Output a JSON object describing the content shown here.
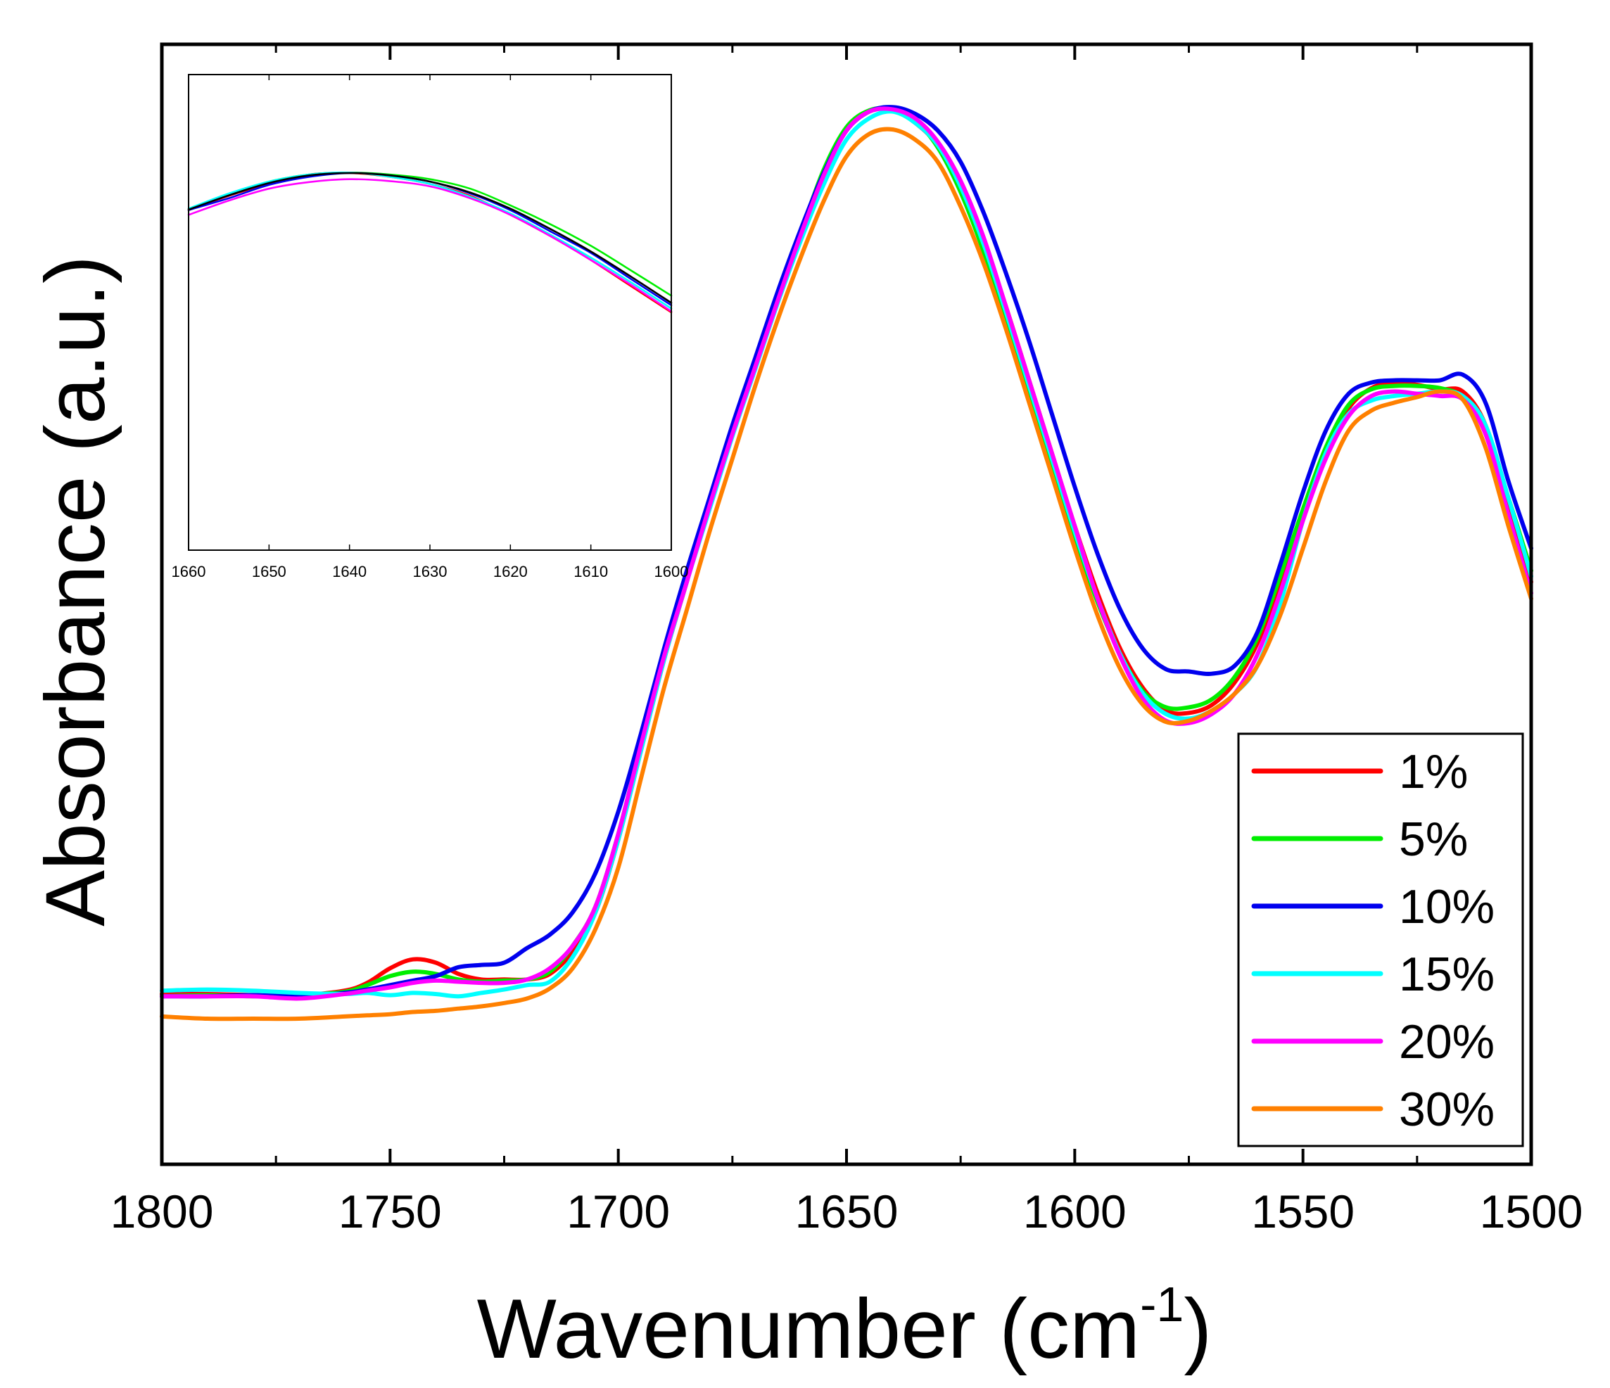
{
  "chart_data": [
    {
      "id": "main",
      "type": "line",
      "title": "",
      "xlabel": "Wavenumber (cm",
      "xlabel_superscript": "-1",
      "xlabel_suffix": ")",
      "ylabel": "Absorbance (a.u.)",
      "xlim": [
        1800,
        1500
      ],
      "ylim": [
        0,
        100
      ],
      "x_ticks": [
        1800,
        1750,
        1700,
        1650,
        1600,
        1550,
        1500
      ],
      "x_tick_labels": [
        "1800",
        "1750",
        "1700",
        "1650",
        "1600",
        "1550",
        "1500"
      ],
      "y_ticks_visible": false,
      "grid": false,
      "legend_position": "bottom-right",
      "series": [
        {
          "name": "1%",
          "color": "#ff0000",
          "x": [
            1800,
            1790,
            1780,
            1770,
            1760,
            1755,
            1750,
            1745,
            1740,
            1735,
            1730,
            1725,
            1720,
            1715,
            1710,
            1705,
            1700,
            1695,
            1690,
            1685,
            1680,
            1675,
            1670,
            1665,
            1660,
            1655,
            1650,
            1645,
            1640,
            1635,
            1630,
            1625,
            1620,
            1615,
            1610,
            1605,
            1600,
            1595,
            1590,
            1585,
            1580,
            1575,
            1570,
            1565,
            1560,
            1555,
            1550,
            1545,
            1540,
            1535,
            1530,
            1525,
            1520,
            1515,
            1510,
            1505,
            1500
          ],
          "y": [
            15.2,
            15.2,
            15.1,
            15.1,
            15.5,
            16.2,
            17.5,
            18.3,
            18.0,
            17.0,
            16.5,
            16.5,
            16.5,
            17.0,
            19.0,
            22.5,
            29.0,
            37.0,
            45.0,
            52.0,
            59.0,
            65.5,
            71.5,
            77.5,
            83.0,
            88.5,
            92.5,
            94.0,
            94.2,
            93.0,
            91.0,
            87.5,
            82.5,
            76.5,
            70.0,
            63.5,
            57.0,
            51.0,
            46.0,
            42.5,
            40.5,
            40.3,
            41.0,
            43.0,
            46.5,
            52.0,
            58.0,
            63.5,
            67.5,
            69.3,
            69.8,
            69.6,
            69.2,
            69.0,
            66.0,
            59.0,
            52.0
          ]
        },
        {
          "name": "5%",
          "color": "#00ee00",
          "x": [
            1800,
            1790,
            1780,
            1770,
            1760,
            1755,
            1750,
            1745,
            1740,
            1735,
            1730,
            1725,
            1720,
            1715,
            1710,
            1705,
            1700,
            1695,
            1690,
            1685,
            1680,
            1675,
            1670,
            1665,
            1660,
            1655,
            1650,
            1645,
            1640,
            1635,
            1630,
            1625,
            1620,
            1615,
            1610,
            1605,
            1600,
            1595,
            1590,
            1585,
            1580,
            1575,
            1570,
            1565,
            1560,
            1555,
            1550,
            1545,
            1540,
            1535,
            1530,
            1525,
            1520,
            1515,
            1510,
            1505,
            1500
          ],
          "y": [
            15.0,
            15.1,
            15.0,
            15.1,
            15.4,
            16.0,
            16.8,
            17.2,
            17.0,
            16.5,
            16.3,
            16.4,
            16.5,
            17.2,
            19.5,
            23.0,
            29.5,
            37.5,
            45.5,
            52.5,
            59.0,
            65.5,
            71.5,
            77.5,
            83.2,
            88.8,
            92.6,
            94.1,
            94.2,
            93.2,
            90.8,
            86.8,
            81.5,
            75.2,
            68.8,
            62.5,
            56.0,
            50.2,
            45.5,
            42.2,
            40.8,
            40.8,
            41.5,
            43.5,
            47.0,
            52.5,
            58.5,
            64.0,
            67.8,
            69.2,
            69.5,
            69.5,
            69.3,
            68.5,
            65.5,
            59.5,
            53.0
          ]
        },
        {
          "name": "10%",
          "color": "#0000ee",
          "x": [
            1800,
            1790,
            1780,
            1770,
            1760,
            1755,
            1750,
            1745,
            1740,
            1735,
            1730,
            1725,
            1720,
            1715,
            1710,
            1705,
            1700,
            1695,
            1690,
            1685,
            1680,
            1675,
            1670,
            1665,
            1660,
            1655,
            1650,
            1645,
            1640,
            1635,
            1630,
            1625,
            1620,
            1615,
            1610,
            1605,
            1600,
            1595,
            1590,
            1585,
            1580,
            1575,
            1570,
            1565,
            1560,
            1555,
            1550,
            1545,
            1540,
            1535,
            1530,
            1525,
            1520,
            1515,
            1510,
            1505,
            1500
          ],
          "y": [
            15.0,
            15.0,
            15.1,
            15.0,
            15.3,
            15.6,
            16.0,
            16.4,
            16.8,
            17.6,
            17.8,
            18.0,
            19.3,
            20.5,
            22.5,
            26.0,
            31.5,
            38.5,
            46.0,
            53.0,
            59.5,
            66.0,
            72.0,
            78.0,
            83.5,
            88.5,
            92.3,
            94.0,
            94.4,
            93.8,
            92.3,
            89.5,
            85.0,
            79.5,
            73.5,
            67.0,
            60.5,
            54.5,
            49.5,
            46.0,
            44.2,
            44.0,
            43.8,
            44.5,
            47.5,
            53.5,
            60.0,
            65.5,
            68.8,
            69.8,
            70.0,
            70.0,
            70.0,
            70.5,
            68.0,
            61.0,
            55.0
          ]
        },
        {
          "name": "15%",
          "color": "#00ffff",
          "x": [
            1800,
            1790,
            1780,
            1770,
            1760,
            1755,
            1750,
            1745,
            1740,
            1735,
            1730,
            1725,
            1720,
            1715,
            1710,
            1705,
            1700,
            1695,
            1690,
            1685,
            1680,
            1675,
            1670,
            1665,
            1660,
            1655,
            1650,
            1645,
            1640,
            1635,
            1630,
            1625,
            1620,
            1615,
            1610,
            1605,
            1600,
            1595,
            1590,
            1585,
            1580,
            1575,
            1570,
            1565,
            1560,
            1555,
            1550,
            1545,
            1540,
            1535,
            1530,
            1525,
            1520,
            1515,
            1510,
            1505,
            1500
          ],
          "y": [
            15.5,
            15.6,
            15.5,
            15.3,
            15.2,
            15.3,
            15.1,
            15.3,
            15.2,
            15.0,
            15.3,
            15.6,
            16.0,
            16.3,
            18.5,
            22.5,
            29.0,
            37.0,
            45.0,
            52.0,
            58.5,
            65.0,
            71.0,
            77.0,
            82.5,
            87.5,
            91.5,
            93.4,
            94.0,
            93.0,
            91.0,
            87.3,
            82.2,
            76.0,
            69.5,
            63.0,
            56.5,
            50.5,
            45.5,
            42.0,
            40.2,
            39.8,
            40.5,
            42.0,
            44.5,
            50.0,
            57.5,
            63.5,
            67.0,
            68.2,
            68.6,
            68.8,
            69.0,
            68.6,
            66.0,
            59.5,
            52.5
          ]
        },
        {
          "name": "20%",
          "color": "#ff00ff",
          "x": [
            1800,
            1790,
            1780,
            1770,
            1760,
            1755,
            1750,
            1745,
            1740,
            1735,
            1730,
            1725,
            1720,
            1715,
            1710,
            1705,
            1700,
            1695,
            1690,
            1685,
            1680,
            1675,
            1670,
            1665,
            1660,
            1655,
            1650,
            1645,
            1640,
            1635,
            1630,
            1625,
            1620,
            1615,
            1610,
            1605,
            1600,
            1595,
            1590,
            1585,
            1580,
            1575,
            1570,
            1565,
            1560,
            1555,
            1550,
            1545,
            1540,
            1535,
            1530,
            1525,
            1520,
            1515,
            1510,
            1505,
            1500
          ],
          "y": [
            15.0,
            15.0,
            15.0,
            14.8,
            15.2,
            15.5,
            15.8,
            16.2,
            16.4,
            16.3,
            16.2,
            16.2,
            16.5,
            17.5,
            19.5,
            23.0,
            29.5,
            37.5,
            45.3,
            52.0,
            58.8,
            65.2,
            71.2,
            77.2,
            83.0,
            88.3,
            92.3,
            94.0,
            94.2,
            93.4,
            91.3,
            87.8,
            82.8,
            76.5,
            70.0,
            63.5,
            57.0,
            50.5,
            45.3,
            41.5,
            39.6,
            39.4,
            40.2,
            42.0,
            45.5,
            51.0,
            57.5,
            63.0,
            66.8,
            68.6,
            69.0,
            68.8,
            68.6,
            68.3,
            65.2,
            58.0,
            51.0
          ]
        },
        {
          "name": "30%",
          "color": "#ff8000",
          "x": [
            1800,
            1790,
            1780,
            1770,
            1760,
            1755,
            1750,
            1745,
            1740,
            1735,
            1730,
            1725,
            1720,
            1715,
            1710,
            1705,
            1700,
            1695,
            1690,
            1685,
            1680,
            1675,
            1670,
            1665,
            1660,
            1655,
            1650,
            1645,
            1640,
            1635,
            1630,
            1625,
            1620,
            1615,
            1610,
            1605,
            1600,
            1595,
            1590,
            1585,
            1580,
            1575,
            1570,
            1565,
            1560,
            1555,
            1550,
            1545,
            1540,
            1535,
            1530,
            1525,
            1520,
            1515,
            1510,
            1505,
            1500
          ],
          "y": [
            13.2,
            13.0,
            13.0,
            13.0,
            13.2,
            13.3,
            13.4,
            13.6,
            13.7,
            13.9,
            14.1,
            14.4,
            14.8,
            15.7,
            17.5,
            21.0,
            26.5,
            34.5,
            42.5,
            49.5,
            56.5,
            63.0,
            69.5,
            75.5,
            81.0,
            86.0,
            90.0,
            92.0,
            92.4,
            91.5,
            89.5,
            85.5,
            80.5,
            74.5,
            68.0,
            61.5,
            55.0,
            49.0,
            44.2,
            41.0,
            39.5,
            39.6,
            40.5,
            42.0,
            44.5,
            49.0,
            55.0,
            61.0,
            65.5,
            67.3,
            68.0,
            68.5,
            69.0,
            68.3,
            64.0,
            57.0,
            50.5
          ]
        }
      ]
    },
    {
      "id": "inset",
      "type": "line",
      "title": "",
      "xlabel": "",
      "ylabel": "",
      "xlim": [
        1660,
        1600
      ],
      "ylim": [
        0,
        100
      ],
      "x_ticks": [
        1660,
        1650,
        1640,
        1630,
        1620,
        1610,
        1600
      ],
      "x_tick_labels": [
        "1660",
        "1650",
        "1640",
        "1630",
        "1620",
        "1610",
        "1600"
      ],
      "y_ticks_visible": false,
      "grid": false,
      "series": [
        {
          "name": "1%",
          "color": "#ff0000",
          "x": [
            1660,
            1655,
            1650,
            1645,
            1640,
            1635,
            1630,
            1625,
            1620,
            1615,
            1610,
            1605,
            1600
          ],
          "y": [
            71.5,
            74.5,
            77.0,
            79.0,
            79.3,
            78.5,
            77.0,
            74.5,
            70.5,
            66.0,
            61.0,
            55.5,
            50.0
          ]
        },
        {
          "name": "5%",
          "color": "#00ee00",
          "x": [
            1660,
            1655,
            1650,
            1645,
            1640,
            1635,
            1630,
            1625,
            1620,
            1615,
            1610,
            1605,
            1600
          ],
          "y": [
            71.8,
            74.8,
            77.5,
            79.0,
            79.4,
            79.0,
            78.0,
            76.0,
            72.5,
            68.5,
            64.0,
            58.8,
            53.5
          ]
        },
        {
          "name": "10%",
          "color": "#0000ee",
          "x": [
            1660,
            1655,
            1650,
            1645,
            1640,
            1635,
            1630,
            1625,
            1620,
            1615,
            1610,
            1605,
            1600
          ],
          "y": [
            71.5,
            74.0,
            76.8,
            78.5,
            79.3,
            78.8,
            77.5,
            75.0,
            71.5,
            67.0,
            62.5,
            57.0,
            51.5
          ]
        },
        {
          "name": "15%",
          "color": "#00ffff",
          "x": [
            1660,
            1655,
            1650,
            1645,
            1640,
            1635,
            1630,
            1625,
            1620,
            1615,
            1610,
            1605,
            1600
          ],
          "y": [
            71.8,
            75.0,
            77.5,
            79.0,
            79.4,
            78.5,
            77.0,
            74.3,
            70.8,
            66.3,
            61.5,
            56.3,
            50.8
          ]
        },
        {
          "name": "20%",
          "color": "#ff00ff",
          "x": [
            1660,
            1655,
            1650,
            1645,
            1640,
            1635,
            1630,
            1625,
            1620,
            1615,
            1610,
            1605,
            1600
          ],
          "y": [
            70.5,
            73.5,
            76.0,
            77.4,
            78.0,
            77.6,
            76.5,
            74.0,
            70.5,
            66.0,
            61.0,
            55.8,
            50.2
          ]
        },
        {
          "name": "black",
          "color": "#000000",
          "x": [
            1660,
            1655,
            1650,
            1645,
            1640,
            1635,
            1630,
            1625,
            1620,
            1615,
            1610,
            1605,
            1600
          ],
          "y": [
            71.6,
            74.6,
            77.2,
            78.8,
            79.3,
            78.8,
            77.5,
            75.2,
            71.8,
            67.5,
            62.8,
            57.5,
            52.0
          ]
        }
      ]
    }
  ]
}
